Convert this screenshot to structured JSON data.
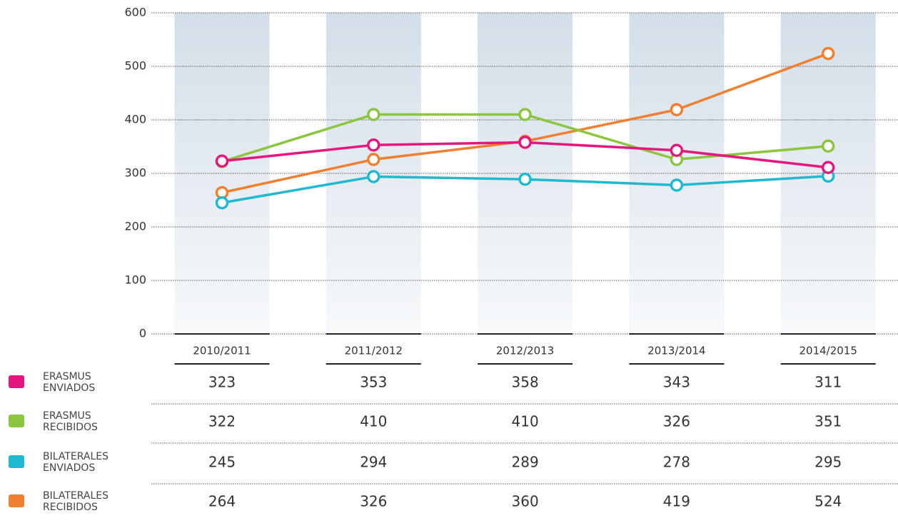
{
  "chart_data": {
    "type": "line",
    "categories": [
      "2010/2011",
      "2011/2012",
      "2012/2013",
      "2013/2014",
      "2014/2015"
    ],
    "series": [
      {
        "name": "ERASMUS ENVIADOS",
        "color": "#e5177e",
        "values": [
          323,
          353,
          358,
          343,
          311
        ]
      },
      {
        "name": "ERASMUS RECIBIDOS",
        "color": "#8cc63f",
        "values": [
          322,
          410,
          410,
          326,
          351
        ]
      },
      {
        "name": "BILATERALES ENVIADOS",
        "color": "#1fb9d0",
        "values": [
          245,
          294,
          289,
          278,
          295
        ]
      },
      {
        "name": "BILATERALES RECIBIDOS",
        "color": "#f08030",
        "values": [
          264,
          326,
          360,
          419,
          524
        ]
      }
    ],
    "ylim": [
      0,
      600
    ],
    "yticks": [
      0,
      100,
      200,
      300,
      400,
      500,
      600
    ],
    "grid": true
  }
}
